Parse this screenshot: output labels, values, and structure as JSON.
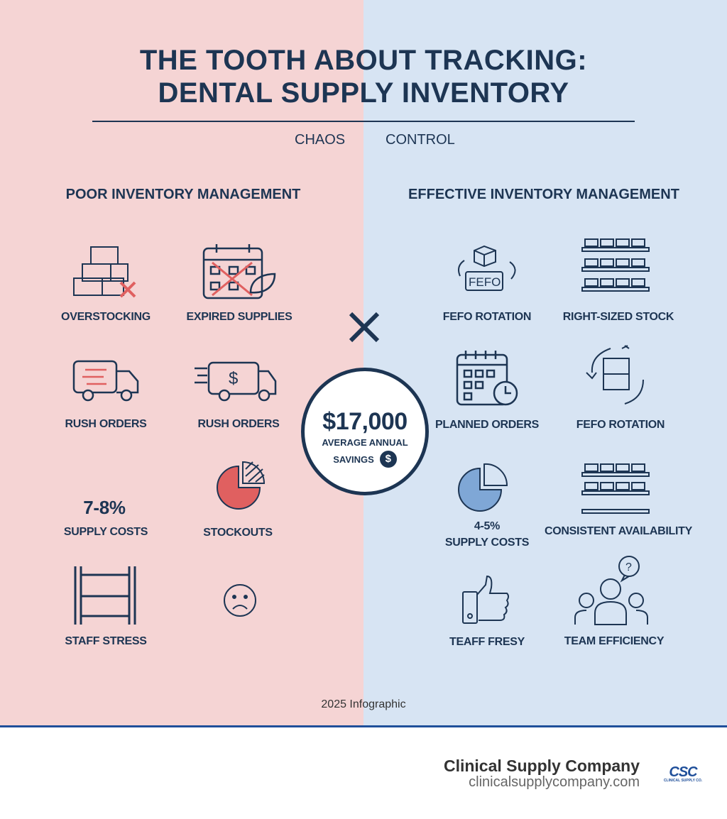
{
  "title_line1": "THE TOOTH ABOUT TRACKING:",
  "title_line2": "DENTAL SUPPLY INVENTORY",
  "sub_left": "CHAOS",
  "sub_right": "CONTROL",
  "left": {
    "heading": "POOR INVENTORY MANAGEMENT",
    "items": [
      "OVERSTOCKING",
      "EXPIRED SUPPLIES",
      "RUSH ORDERS",
      "RUSH ORDERS",
      "7-8%",
      "SUPPLY COSTS",
      "STOCKOUTS",
      "STAFF STRESS"
    ]
  },
  "right": {
    "heading": "EFFECTIVE INVENTORY MANAGEMENT",
    "items": [
      "FEFO ROTATION",
      "RIGHT-SIZED STOCK",
      "PLANNED ORDERS",
      "FEFO ROTATION",
      "4-5%",
      "SUPPLY COSTS",
      "CONSISTENT AVAILABILITY",
      "TEAFF FRESY",
      "TEAM EFFICIENCY"
    ],
    "fefo_box": "FEFO"
  },
  "center": {
    "amount": "$17,000",
    "line1": "AVERAGE ANNUAL",
    "line2": "SAVINGS",
    "dollar": "$"
  },
  "year": "2025 Infographic",
  "footer": {
    "company": "Clinical Supply Company",
    "url": "clinicalsupplycompany.com",
    "logo": "CSC",
    "logo_sub": "CLINICAL SUPPLY CO."
  },
  "colors": {
    "left_bg": "#f5d4d4",
    "right_bg": "#d7e4f3",
    "navy": "#1d3553",
    "red": "#e06060",
    "blue": "#7fa7d6"
  }
}
